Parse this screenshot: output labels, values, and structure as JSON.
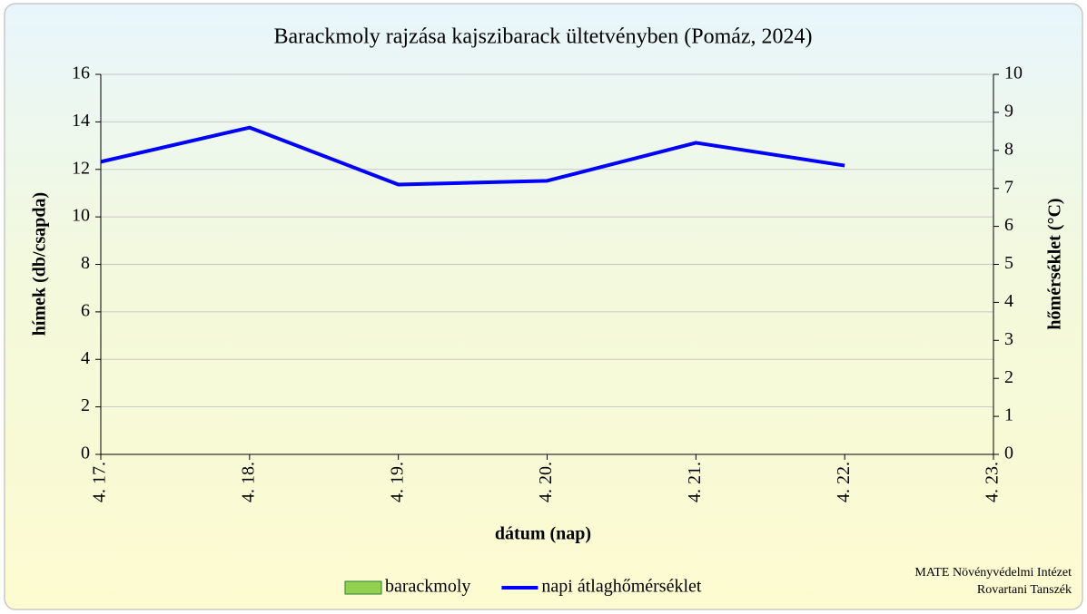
{
  "chart_data": {
    "type": "bar_line",
    "title": "Barackmoly rajzása kajszibarack ültetvényben (Pomáz, 2024)",
    "x_label": "dátum (nap)",
    "y_label": "hímek (db/csapda)",
    "y2_label": "hőmérséklet (°C)",
    "categories": [
      "4. 17.",
      "4. 18.",
      "4. 19.",
      "4. 20.",
      "4. 21.",
      "4. 22.",
      "4. 23."
    ],
    "series": [
      {
        "name": "barackmoly",
        "type": "bar",
        "color": "#92d050",
        "values": [
          0,
          0,
          0,
          0,
          0,
          0,
          0
        ]
      },
      {
        "name": "napi átlaghőmérséklet",
        "type": "line",
        "axis": "y2",
        "color": "#0000ff",
        "values": [
          7.7,
          8.6,
          7.1,
          7.2,
          8.2,
          7.6,
          null
        ]
      }
    ],
    "ylim": [
      0,
      16
    ],
    "yticks": [
      0,
      2,
      4,
      6,
      8,
      10,
      12,
      14,
      16
    ],
    "y2lim": [
      0,
      10
    ],
    "y2ticks": [
      0,
      1,
      2,
      3,
      4,
      5,
      6,
      7,
      8,
      9,
      10
    ],
    "grid": true,
    "legend": "bottom",
    "annotations": [
      "MATE Növényvédelmi Intézet",
      "Rovartani Tanszék"
    ]
  }
}
